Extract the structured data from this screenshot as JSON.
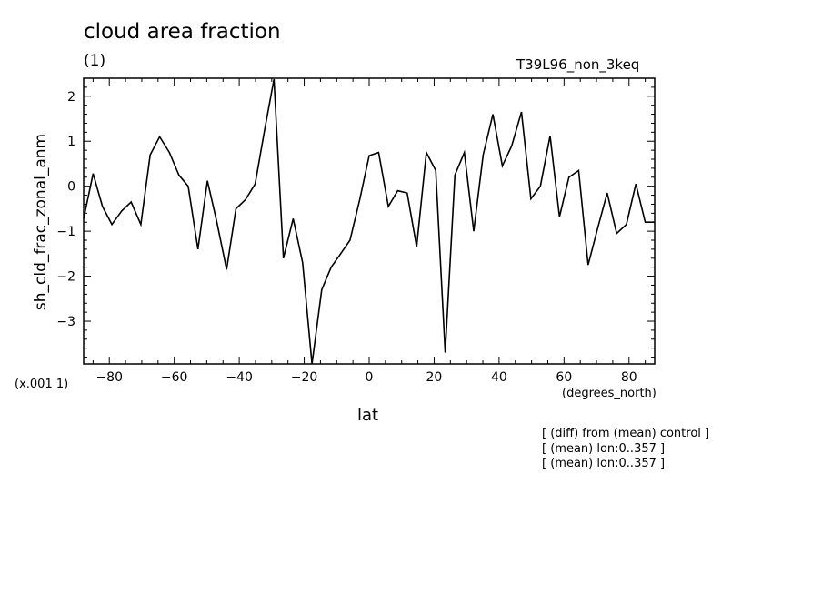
{
  "header": {
    "title": "cloud area fraction",
    "subtitle": "(1)",
    "run_label": "T39L96_non_3keq"
  },
  "axis_notes": {
    "multiplier": "(x.001 1)",
    "x_units": "(degrees_north)"
  },
  "footnotes": [
    "[ (diff) from (mean) control ]",
    "[ (mean) lon:0..357 ]",
    "[ (mean) lon:0..357 ]"
  ],
  "chart_data": {
    "type": "line",
    "title": "cloud area fraction",
    "xlabel": "lat",
    "ylabel": "sh_cld_frac_zonal_anm",
    "xlim": [
      -87.9,
      87.9
    ],
    "ylim": [
      -3.95,
      2.4
    ],
    "xticks": [
      -80,
      -60,
      -40,
      -20,
      0,
      20,
      40,
      60,
      80
    ],
    "yticks": [
      2,
      1,
      0,
      -1,
      -2,
      -3
    ],
    "xtick_labels": [
      "−80",
      "−60",
      "−40",
      "−20",
      "0",
      "20",
      "40",
      "60",
      "80"
    ],
    "ytick_labels": [
      "2",
      "1",
      "0",
      "−1",
      "−2",
      "−3"
    ],
    "grid": false,
    "series": [
      {
        "x": [
          -87.9,
          -85.0,
          -82.1,
          -79.2,
          -76.2,
          -73.3,
          -70.3,
          -67.4,
          -64.5,
          -61.5,
          -58.6,
          -55.7,
          -52.7,
          -49.8,
          -46.9,
          -43.9,
          -41.0,
          -38.1,
          -35.1,
          -32.2,
          -29.3,
          -26.4,
          -23.4,
          -20.5,
          -17.6,
          -14.6,
          -11.7,
          -8.8,
          -5.9,
          -2.9,
          0.0,
          2.9,
          5.9,
          8.8,
          11.7,
          14.6,
          17.6,
          20.5,
          23.4,
          26.4,
          29.3,
          32.2,
          35.1,
          38.1,
          41.0,
          43.9,
          46.9,
          49.8,
          52.7,
          55.7,
          58.6,
          61.5,
          64.5,
          67.4,
          70.3,
          73.3,
          76.2,
          79.2,
          82.1,
          85.0,
          87.9
        ],
        "values": [
          -0.72,
          0.28,
          -0.45,
          -0.85,
          -0.55,
          -0.35,
          -0.85,
          0.7,
          1.1,
          0.75,
          0.25,
          0.0,
          -1.4,
          0.12,
          -0.8,
          -1.85,
          -0.5,
          -0.3,
          0.05,
          1.25,
          2.38,
          -1.6,
          -0.72,
          -1.7,
          -3.95,
          -2.3,
          -1.8,
          -1.5,
          -1.2,
          -0.3,
          0.68,
          0.75,
          -0.45,
          -0.1,
          -0.15,
          -1.35,
          0.75,
          0.35,
          -3.7,
          0.25,
          0.75,
          -1.0,
          0.7,
          1.6,
          0.45,
          0.9,
          1.65,
          -0.28,
          0.0,
          1.12,
          -0.68,
          0.2,
          0.35,
          -1.75,
          -0.95,
          -0.15,
          -1.05,
          -0.85,
          0.05,
          -0.8,
          -0.8
        ]
      }
    ]
  }
}
